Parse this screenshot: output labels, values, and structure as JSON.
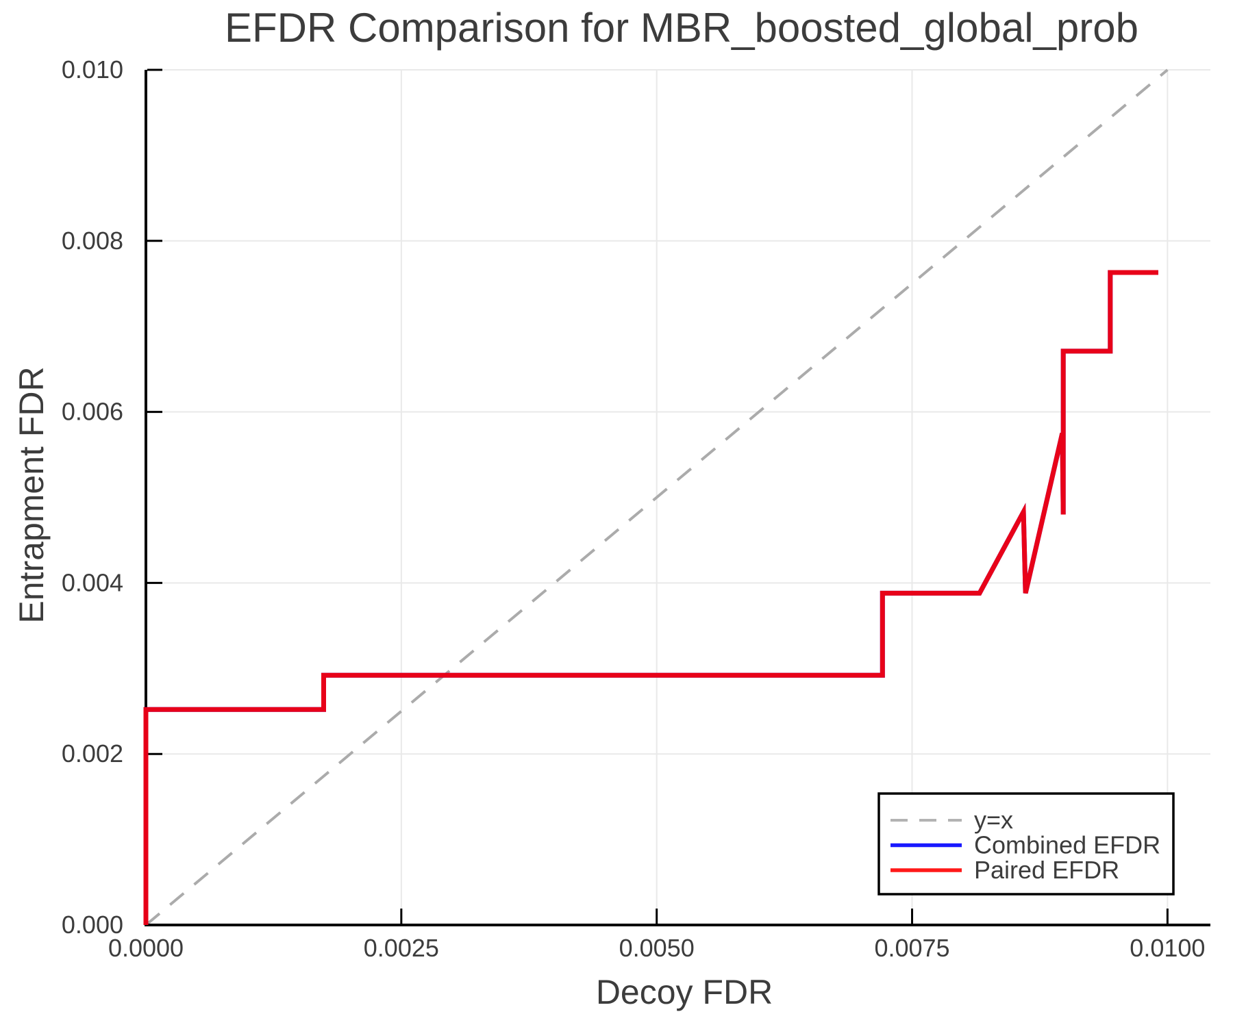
{
  "chart_data": {
    "type": "line",
    "title": "EFDR Comparison for MBR_boosted_global_prob",
    "xlabel": "Decoy FDR",
    "ylabel": "Entrapment FDR",
    "xlim": [
      0.0,
      0.01042
    ],
    "ylim": [
      0.0,
      0.01
    ],
    "grid": true,
    "legend_position": "lower right",
    "x_ticks": [
      {
        "value": 0.0,
        "label": "0.0000"
      },
      {
        "value": 0.0025,
        "label": "0.0025"
      },
      {
        "value": 0.005,
        "label": "0.0050"
      },
      {
        "value": 0.0075,
        "label": "0.0075"
      },
      {
        "value": 0.01,
        "label": "0.0100"
      }
    ],
    "y_ticks": [
      {
        "value": 0.0,
        "label": "0.000"
      },
      {
        "value": 0.002,
        "label": "0.002"
      },
      {
        "value": 0.004,
        "label": "0.004"
      },
      {
        "value": 0.006,
        "label": "0.006"
      },
      {
        "value": 0.008,
        "label": "0.008"
      },
      {
        "value": 0.01,
        "label": "0.010"
      }
    ],
    "reference_line": {
      "label": "y=x",
      "from": [
        0.0,
        0.0
      ],
      "to": [
        0.01,
        0.01
      ],
      "color": "#ababab",
      "dashed": true
    },
    "series": [
      {
        "name": "Combined EFDR",
        "color": "#0000ff",
        "opacity": 0.9,
        "points": [
          [
            0.0,
            0.0
          ],
          [
            0.0,
            0.00252
          ],
          [
            0.00174,
            0.00252
          ],
          [
            0.00174,
            0.00292
          ],
          [
            0.00721,
            0.00292
          ],
          [
            0.00721,
            0.00388
          ],
          [
            0.00816,
            0.00388
          ],
          [
            0.00859,
            0.00483
          ],
          [
            0.00861,
            0.00388
          ],
          [
            0.00897,
            0.00575
          ],
          [
            0.00898,
            0.0048
          ],
          [
            0.00898,
            0.00671
          ],
          [
            0.00944,
            0.00671
          ],
          [
            0.00944,
            0.00763
          ],
          [
            0.00991,
            0.00763
          ]
        ]
      },
      {
        "name": "Paired EFDR",
        "color": "#ff0000",
        "opacity": 0.9,
        "points": [
          [
            0.0,
            0.0
          ],
          [
            0.0,
            0.00252
          ],
          [
            0.00174,
            0.00252
          ],
          [
            0.00174,
            0.00292
          ],
          [
            0.00721,
            0.00292
          ],
          [
            0.00721,
            0.00388
          ],
          [
            0.00816,
            0.00388
          ],
          [
            0.00859,
            0.00483
          ],
          [
            0.00861,
            0.00388
          ],
          [
            0.00897,
            0.00575
          ],
          [
            0.00898,
            0.0048
          ],
          [
            0.00898,
            0.00671
          ],
          [
            0.00944,
            0.00671
          ],
          [
            0.00944,
            0.00763
          ],
          [
            0.00991,
            0.00763
          ]
        ]
      }
    ],
    "legend": [
      {
        "label": "y=x",
        "color": "#ababab",
        "dashed": true
      },
      {
        "label": "Combined EFDR",
        "color": "#0000ff",
        "dashed": false
      },
      {
        "label": "Paired EFDR",
        "color": "#ff0000",
        "dashed": false
      }
    ],
    "colors": {
      "background": "#ffffff",
      "grid": "#e9e9e9",
      "axis": "#000000",
      "text": "#3c3c3c",
      "legend_border": "#000000",
      "legend_background": "#ffffff"
    }
  }
}
